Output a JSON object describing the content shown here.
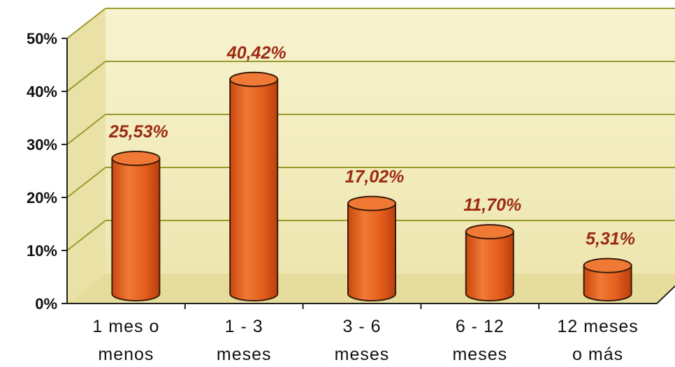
{
  "chart_data": {
    "type": "bar",
    "style": "3d-cylinder",
    "title": "",
    "xlabel": "",
    "ylabel": "",
    "ylim": [
      0,
      50
    ],
    "yticks": [
      "0%",
      "10%",
      "20%",
      "30%",
      "40%",
      "50%"
    ],
    "grid": true,
    "legend": "none",
    "categories": [
      [
        "1 mes o",
        "menos"
      ],
      [
        "1 - 3",
        "meses"
      ],
      [
        "3 - 6",
        "meses"
      ],
      [
        "6 - 12",
        "meses"
      ],
      [
        "12 meses",
        "o más"
      ]
    ],
    "series": [
      {
        "values": [
          25.53,
          40.42,
          17.02,
          11.7,
          5.31
        ],
        "labels": [
          "25,53%",
          "40,42%",
          "17,02%",
          "11,70%",
          "5,31%"
        ]
      }
    ],
    "colors": {
      "bar": "#e8601c",
      "bar_dark": "#b8400d",
      "bar_top": "#f07a35",
      "wall": "#f5f0c4",
      "grid": "#9a9a2a",
      "label": "#9c2a12"
    }
  }
}
